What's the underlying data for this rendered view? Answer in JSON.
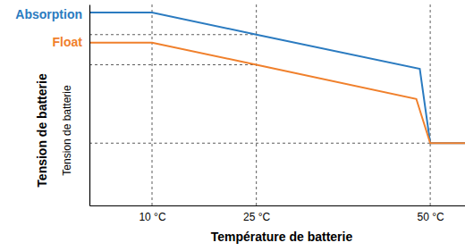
{
  "chart_data": {
    "type": "line",
    "xlabel": "Température de batterie",
    "ylabel": "Tension de batterie",
    "ylabel_secondary": "Tension de batterie",
    "xlim": [
      1,
      55
    ],
    "xticks": [
      {
        "value": 10,
        "label": "10 °C"
      },
      {
        "value": 25,
        "label": "25 °C"
      },
      {
        "value": 50,
        "label": "50 °C"
      }
    ],
    "ylim": [
      0,
      100
    ],
    "yticks": [
      31,
      70,
      85
    ],
    "tick_labels": "x",
    "grid": true,
    "legend": "top-left",
    "series": [
      {
        "name": "Absorption",
        "color": "#2b7bc0",
        "x": [
          1,
          10,
          25,
          48.5,
          50,
          55
        ],
        "values": [
          96,
          96,
          85,
          68,
          31,
          31
        ]
      },
      {
        "name": "Float",
        "color": "#f0802c",
        "x": [
          1,
          10,
          25,
          48,
          50,
          55
        ],
        "values": [
          81,
          81,
          70,
          53,
          31,
          31
        ]
      }
    ]
  }
}
